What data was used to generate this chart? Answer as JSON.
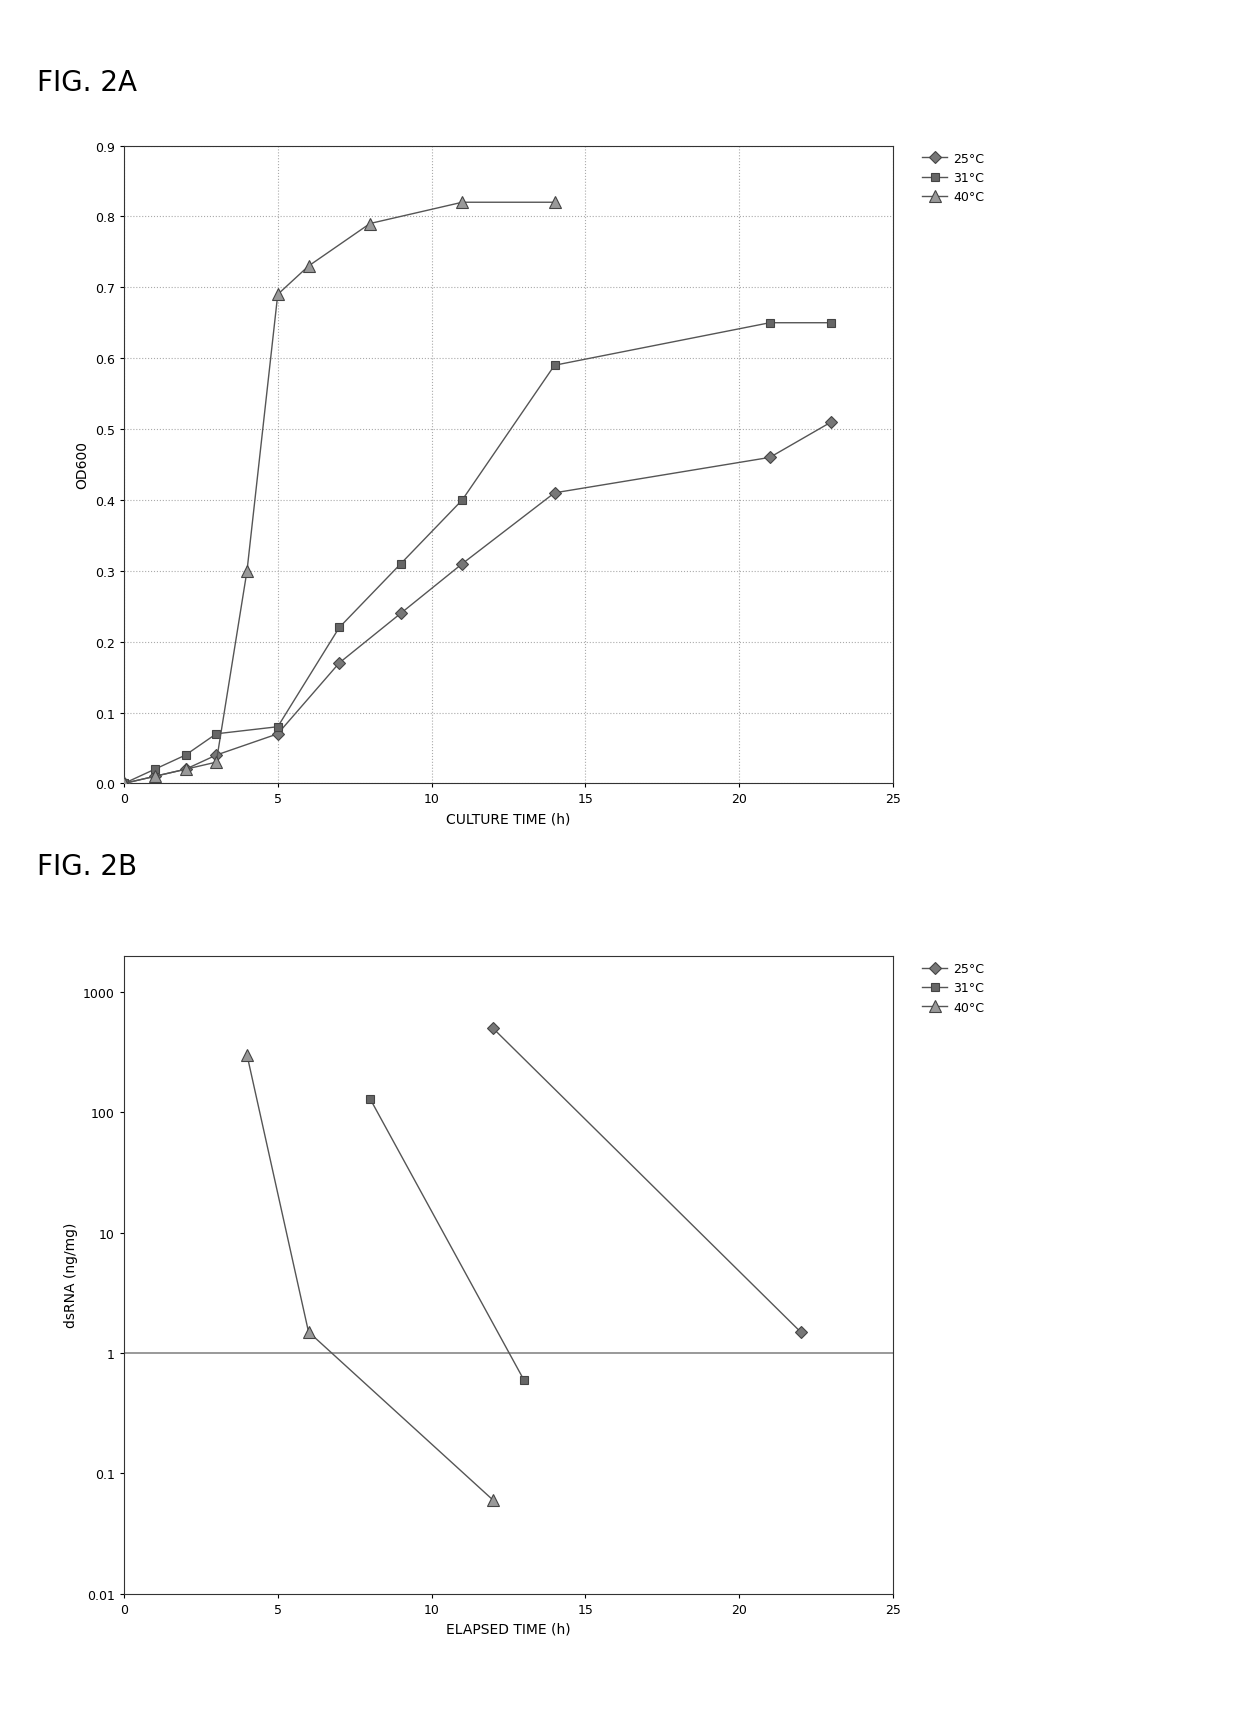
{
  "fig2a": {
    "title": "FIG. 2A",
    "xlabel": "CULTURE TIME (h)",
    "ylabel": "OD600",
    "xlim": [
      0,
      25
    ],
    "ylim": [
      0,
      0.9
    ],
    "yticks": [
      0,
      0.1,
      0.2,
      0.3,
      0.4,
      0.5,
      0.6,
      0.7,
      0.8,
      0.9
    ],
    "xticks": [
      0,
      5,
      10,
      15,
      20,
      25
    ],
    "series": {
      "25C": {
        "x": [
          0,
          1,
          2,
          3,
          5,
          7,
          9,
          11,
          14,
          21,
          23
        ],
        "y": [
          0,
          0.01,
          0.02,
          0.04,
          0.07,
          0.17,
          0.24,
          0.31,
          0.41,
          0.46,
          0.51
        ],
        "color": "#555555",
        "marker": "D",
        "label": "25°C"
      },
      "31C": {
        "x": [
          0,
          1,
          2,
          3,
          5,
          7,
          9,
          11,
          14,
          21,
          23
        ],
        "y": [
          0,
          0.02,
          0.04,
          0.07,
          0.08,
          0.22,
          0.31,
          0.4,
          0.59,
          0.65,
          0.65
        ],
        "color": "#555555",
        "marker": "s",
        "label": "31°C"
      },
      "40C": {
        "x": [
          0,
          1,
          2,
          3,
          4,
          5,
          6,
          8,
          11,
          14
        ],
        "y": [
          0,
          0.01,
          0.02,
          0.03,
          0.3,
          0.69,
          0.73,
          0.79,
          0.82,
          0.82
        ],
        "color": "#555555",
        "marker": "^",
        "label": "40°C"
      }
    }
  },
  "fig2b": {
    "title": "FIG. 2B",
    "xlabel": "ELAPSED TIME (h)",
    "ylabel": "dsRNA (ng/mg)",
    "xlim": [
      0,
      25
    ],
    "ylim_log": [
      0.01,
      2000
    ],
    "xticks": [
      0,
      5,
      10,
      15,
      20,
      25
    ],
    "yticks": [
      0.01,
      0.1,
      1,
      10,
      100,
      1000
    ],
    "yticklabels": [
      "0.01",
      "0.1",
      "1",
      "10",
      "100",
      "1000"
    ],
    "series": {
      "25C": {
        "x": [
          12,
          22
        ],
        "y": [
          500,
          1.5
        ],
        "color": "#555555",
        "marker": "D",
        "label": "25°C"
      },
      "31C": {
        "x": [
          8,
          13
        ],
        "y": [
          130,
          0.6
        ],
        "color": "#555555",
        "marker": "s",
        "label": "31°C"
      },
      "40C": {
        "x": [
          4,
          6,
          12
        ],
        "y": [
          300,
          1.5,
          0.06
        ],
        "color": "#555555",
        "marker": "^",
        "label": "40°C"
      }
    },
    "hline_y": 1,
    "hline_color": "#888888"
  },
  "background_color": "#ffffff",
  "figure_bg": "#ffffff",
  "grid_color": "#aaaaaa",
  "grid_linestyle": "dotted"
}
